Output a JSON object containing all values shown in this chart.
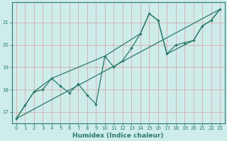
{
  "title": "",
  "xlabel": "Humidex (Indice chaleur)",
  "ylabel": "",
  "bg_color": "#ceecea",
  "grid_color": "#b8ddd9",
  "line_color": "#2a7a6a",
  "xlim": [
    -0.5,
    23.5
  ],
  "ylim": [
    16.5,
    21.9
  ],
  "xticks": [
    0,
    1,
    2,
    3,
    4,
    5,
    6,
    7,
    8,
    9,
    10,
    11,
    12,
    13,
    14,
    15,
    16,
    17,
    18,
    19,
    20,
    21,
    22,
    23
  ],
  "yticks": [
    17,
    18,
    19,
    20,
    21
  ],
  "series_zigzag_x": [
    0,
    1,
    2,
    3,
    4,
    5,
    6,
    7,
    8,
    9,
    10,
    11,
    12,
    13,
    14,
    15,
    16,
    17,
    18,
    19,
    20,
    21,
    22,
    23
  ],
  "series_zigzag_y": [
    16.7,
    17.3,
    17.9,
    18.0,
    18.5,
    18.15,
    17.85,
    18.25,
    17.75,
    17.35,
    19.5,
    19.0,
    19.3,
    19.85,
    20.5,
    21.4,
    21.1,
    19.6,
    20.0,
    20.1,
    20.2,
    20.85,
    21.1,
    21.6
  ],
  "series_trend_x": [
    0,
    23
  ],
  "series_trend_y": [
    16.7,
    21.6
  ],
  "series_curve_x": [
    0,
    2,
    4,
    10,
    14,
    15,
    16,
    17,
    20,
    21,
    22,
    23
  ],
  "series_curve_y": [
    16.7,
    17.9,
    18.5,
    19.5,
    20.5,
    21.4,
    21.1,
    19.6,
    20.2,
    20.85,
    21.1,
    21.6
  ]
}
